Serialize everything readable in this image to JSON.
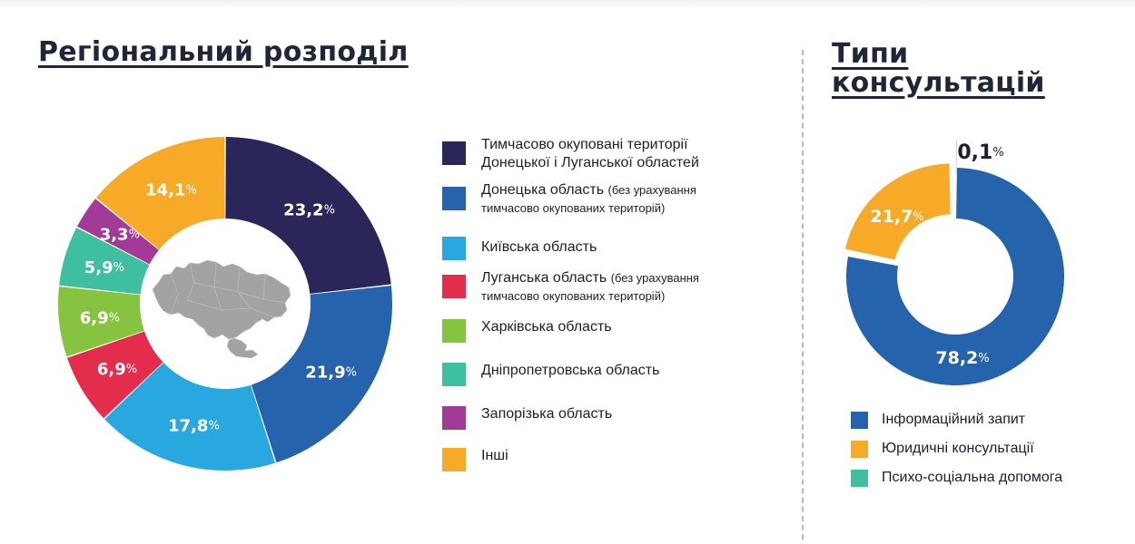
{
  "chart_data": [
    {
      "type": "pie",
      "title": "Регіональний розподіл",
      "value_suffix": "%",
      "categories": [
        "Тимчасово окуповані території Донецької і Луганської областей",
        "Донецька область (без урахування тимчасово окупованих територій)",
        "Київська область",
        "Луганська область (без урахування тимчасово окупованих територій)",
        "Харківська область",
        "Дніпропетровська область",
        "Запорізька область",
        "Інші"
      ],
      "values": [
        23.2,
        21.9,
        17.8,
        6.9,
        6.9,
        5.9,
        3.3,
        14.1
      ],
      "value_labels": [
        "23,2",
        "21,9",
        "17,8",
        "6,9",
        "6,9",
        "5,9",
        "3,3",
        "14,1"
      ],
      "colors": [
        "#2a2659",
        "#2563ad",
        "#29a8e0",
        "#e42d4c",
        "#86c43f",
        "#3dbfa0",
        "#a23a97",
        "#f7a928"
      ],
      "legend": [
        {
          "main": "Тимчасово окуповані території Донецької і Луганської областей",
          "note": ""
        },
        {
          "main": "Донецька область",
          "note": "(без урахування тимчасово окупованих територій)"
        },
        {
          "main": "Київська область",
          "note": ""
        },
        {
          "main": "Луганська область",
          "note": "(без урахування тимчасово окупованих територій)"
        },
        {
          "main": "Харківська область",
          "note": ""
        },
        {
          "main": "Дніпропетровська область",
          "note": ""
        },
        {
          "main": "Запорізька область",
          "note": ""
        },
        {
          "main": "Інші",
          "note": ""
        }
      ],
      "legend_position": "right",
      "center_icon": "ukraine-map-icon"
    },
    {
      "type": "pie",
      "title": "Типи консультацій",
      "value_suffix": "%",
      "categories": [
        "Інформаційний запит",
        "Юридичні консультації",
        "Психо-соціальна допомога"
      ],
      "values": [
        78.2,
        21.7,
        0.1
      ],
      "value_labels": [
        "78,2",
        "21,7",
        "0,1"
      ],
      "colors": [
        "#2563ad",
        "#f7a928",
        "#3dbfa0"
      ],
      "legend_position": "bottom"
    }
  ]
}
